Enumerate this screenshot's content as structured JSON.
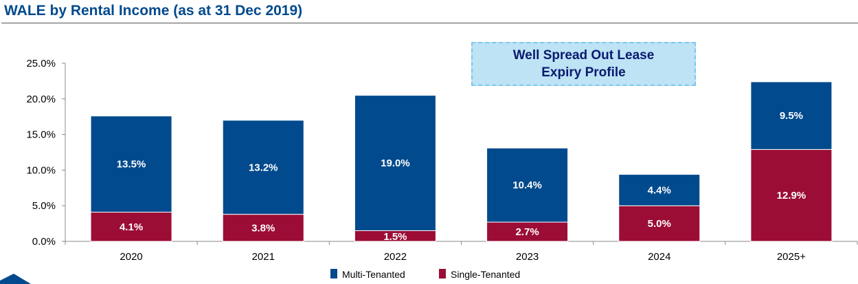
{
  "chart_data": {
    "type": "bar",
    "stacked": true,
    "title": "WALE by Rental Income (as at 31 Dec 2019)",
    "categories": [
      "2020",
      "2021",
      "2022",
      "2023",
      "2024",
      "2025+"
    ],
    "series": [
      {
        "name": "Single-Tenanted",
        "color": "#9b0d35",
        "values": [
          4.1,
          3.8,
          1.5,
          2.7,
          5.0,
          12.9
        ],
        "labels": [
          "4.1%",
          "3.8%",
          "1.5%",
          "2.7%",
          "5.0%",
          "12.9%"
        ]
      },
      {
        "name": "Multi-Tenanted",
        "color": "#004a8d",
        "values": [
          13.5,
          13.2,
          19.0,
          10.4,
          4.4,
          9.5
        ],
        "labels": [
          "13.5%",
          "13.2%",
          "19.0%",
          "10.4%",
          "4.4%",
          "9.5%"
        ]
      }
    ],
    "legend_order": [
      "Multi-Tenanted",
      "Single-Tenanted"
    ],
    "ylim": [
      0,
      25
    ],
    "yticks": [
      "0.0%",
      "5.0%",
      "10.0%",
      "15.0%",
      "20.0%",
      "25.0%"
    ],
    "grid": false,
    "legend_position": "bottom",
    "xlabel": "",
    "ylabel": ""
  },
  "callout": {
    "line1": "Well Spread Out Lease",
    "line2": "Expiry Profile"
  },
  "logo": {
    "color": "#004a8d"
  }
}
